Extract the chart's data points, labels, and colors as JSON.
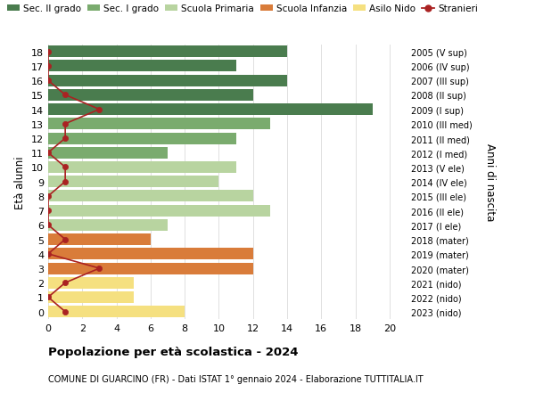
{
  "ages": [
    18,
    17,
    16,
    15,
    14,
    13,
    12,
    11,
    10,
    9,
    8,
    7,
    6,
    5,
    4,
    3,
    2,
    1,
    0
  ],
  "right_labels": [
    "2005 (V sup)",
    "2006 (IV sup)",
    "2007 (III sup)",
    "2008 (II sup)",
    "2009 (I sup)",
    "2010 (III med)",
    "2011 (II med)",
    "2012 (I med)",
    "2013 (V ele)",
    "2014 (IV ele)",
    "2015 (III ele)",
    "2016 (II ele)",
    "2017 (I ele)",
    "2018 (mater)",
    "2019 (mater)",
    "2020 (mater)",
    "2021 (nido)",
    "2022 (nido)",
    "2023 (nido)"
  ],
  "bar_values": [
    14,
    11,
    14,
    12,
    19,
    13,
    11,
    7,
    11,
    10,
    12,
    13,
    7,
    6,
    12,
    12,
    5,
    5,
    8
  ],
  "stranieri_values": [
    0,
    0,
    0,
    1,
    3,
    1,
    1,
    0,
    1,
    1,
    0,
    0,
    0,
    1,
    0,
    3,
    1,
    0,
    1
  ],
  "bar_colors": [
    "#4a7c4e",
    "#4a7c4e",
    "#4a7c4e",
    "#4a7c4e",
    "#4a7c4e",
    "#7aab6e",
    "#7aab6e",
    "#7aab6e",
    "#b8d4a0",
    "#b8d4a0",
    "#b8d4a0",
    "#b8d4a0",
    "#b8d4a0",
    "#d97c3a",
    "#d97c3a",
    "#d97c3a",
    "#f5e080",
    "#f5e080",
    "#f5e080"
  ],
  "legend_labels": [
    "Sec. II grado",
    "Sec. I grado",
    "Scuola Primaria",
    "Scuola Infanzia",
    "Asilo Nido",
    "Stranieri"
  ],
  "legend_colors": [
    "#4a7c4e",
    "#7aab6e",
    "#b8d4a0",
    "#d97c3a",
    "#f5e080",
    "#aa2222"
  ],
  "stranieri_color": "#aa2222",
  "title": "Popolazione per età scolastica - 2024",
  "subtitle": "COMUNE DI GUARCINO (FR) - Dati ISTAT 1° gennaio 2024 - Elaborazione TUTTITALIA.IT",
  "ylabel": "Età alunni",
  "right_ylabel": "Anni di nascita",
  "xlim": [
    0,
    21
  ],
  "xticks": [
    0,
    2,
    4,
    6,
    8,
    10,
    12,
    14,
    16,
    18,
    20
  ],
  "background_color": "#ffffff",
  "grid_color": "#e0e0e0"
}
